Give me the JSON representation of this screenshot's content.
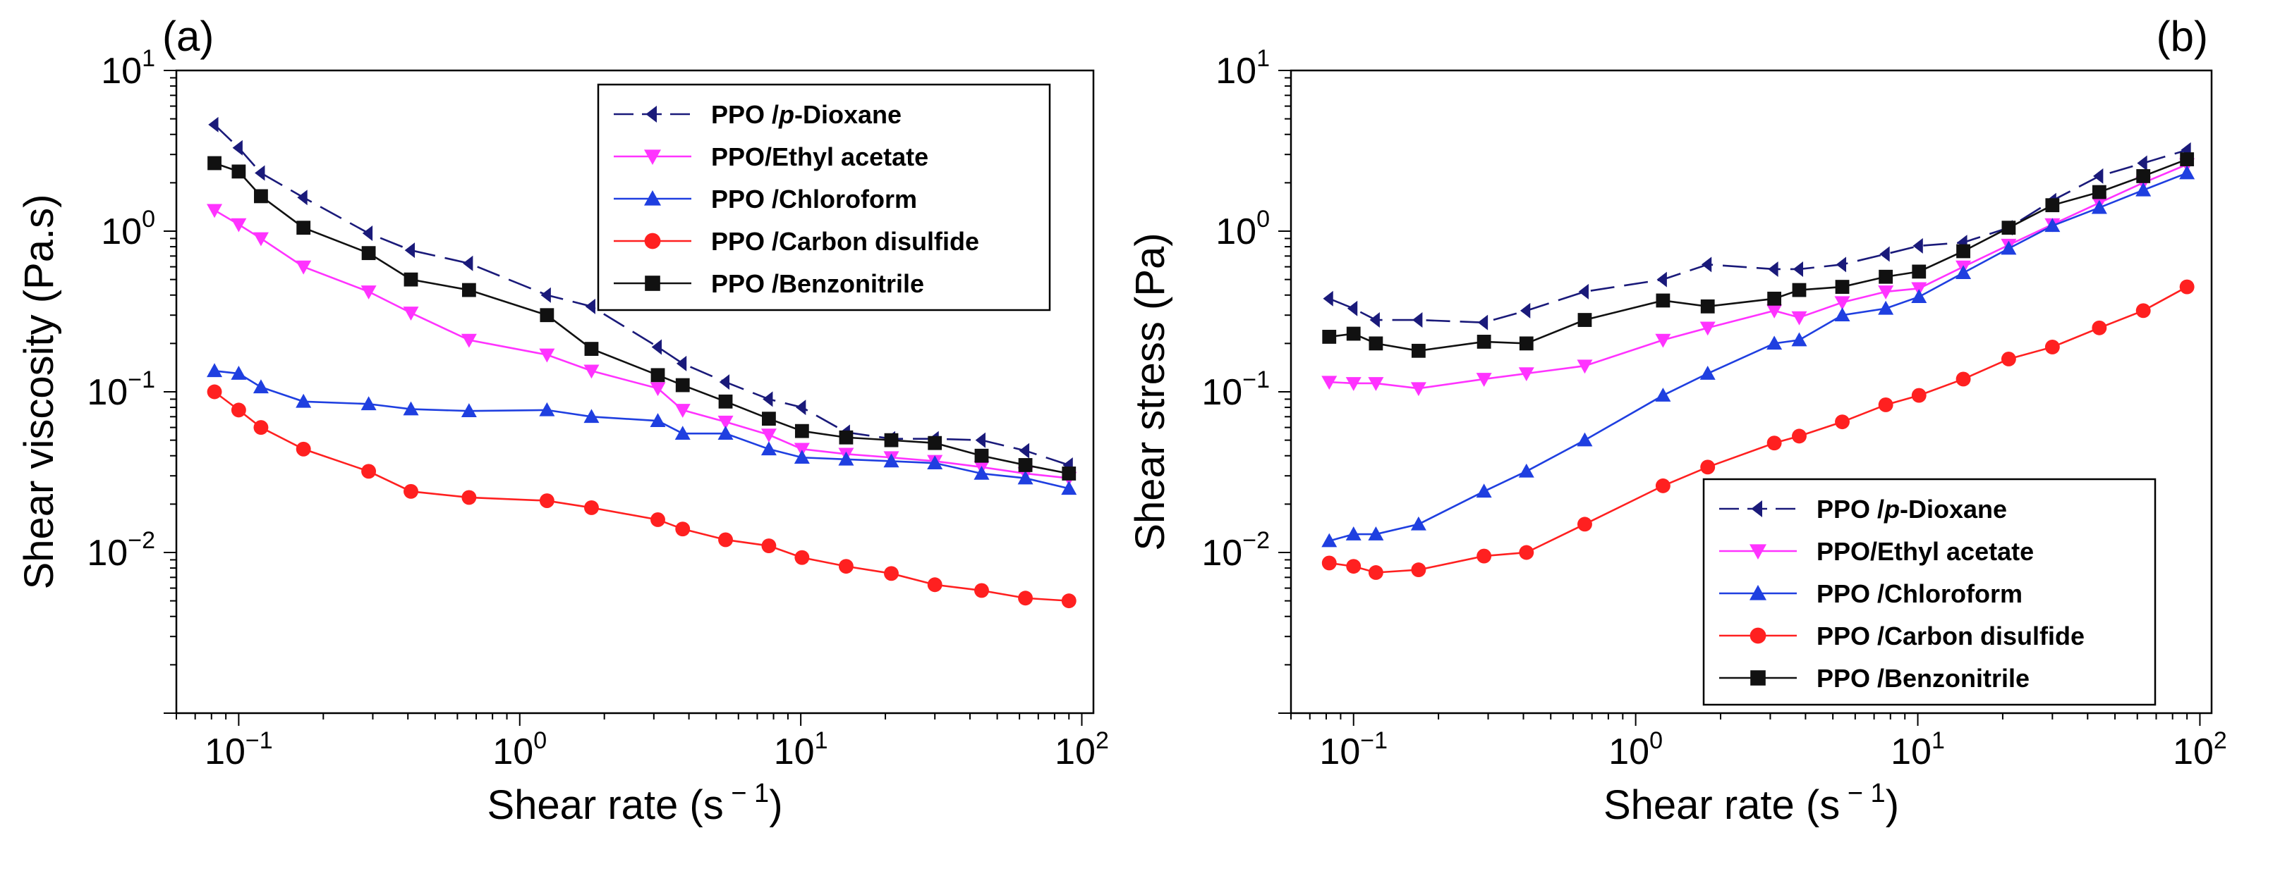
{
  "chart_data": [
    {
      "type": "line",
      "panel_label": "(a)",
      "xscale": "log",
      "yscale": "log",
      "xlabel": "Shear rate (s",
      "xlabel_sup": "− 1",
      "xlabel_end": ")",
      "ylabel": "Shear viscosity (Pa.s)",
      "xlim": [
        0.06,
        110
      ],
      "ylim": [
        0.001,
        10
      ],
      "xticks": [
        {
          "base": "10",
          "exp": "−1",
          "value": 0.1
        },
        {
          "base": "10",
          "exp": "0",
          "value": 1
        },
        {
          "base": "10",
          "exp": "1",
          "value": 10
        },
        {
          "base": "10",
          "exp": "2",
          "value": 100
        }
      ],
      "yticks": [
        {
          "base": "10",
          "exp": "−2",
          "value": 0.01
        },
        {
          "base": "10",
          "exp": "−1",
          "value": 0.1
        },
        {
          "base": "10",
          "exp": "0",
          "value": 1
        },
        {
          "base": "10",
          "exp": "1",
          "value": 10
        }
      ],
      "legend_position": "top-right",
      "series": [
        {
          "name": "PPO /p-Dioxane",
          "color": "#1a1a7a",
          "marker": "left-triangle",
          "dash": true,
          "x": [
            0.082,
            0.1,
            0.12,
            0.17,
            0.29,
            0.41,
            0.66,
            1.25,
            1.8,
            3.1,
            3.8,
            5.4,
            7.7,
            10.1,
            14.5,
            21,
            30,
            44,
            63,
            90
          ],
          "y": [
            4.6,
            3.3,
            2.3,
            1.62,
            0.97,
            0.76,
            0.63,
            0.4,
            0.34,
            0.19,
            0.15,
            0.115,
            0.09,
            0.08,
            0.056,
            0.051,
            0.051,
            0.05,
            0.043,
            0.035
          ]
        },
        {
          "name": "PPO/Ethyl acetate",
          "color": "#ff33ff",
          "marker": "down-triangle",
          "dash": false,
          "x": [
            0.082,
            0.1,
            0.12,
            0.17,
            0.29,
            0.41,
            0.66,
            1.25,
            1.8,
            3.1,
            3.8,
            5.4,
            7.7,
            10.1,
            14.5,
            21,
            30,
            44,
            63,
            90
          ],
          "y": [
            1.35,
            1.1,
            0.9,
            0.6,
            0.42,
            0.31,
            0.21,
            0.17,
            0.135,
            0.105,
            0.077,
            0.065,
            0.054,
            0.044,
            0.041,
            0.039,
            0.037,
            0.034,
            0.031,
            0.029
          ]
        },
        {
          "name": "PPO /Chloroform",
          "color": "#1f3fe0",
          "marker": "up-triangle",
          "dash": false,
          "x": [
            0.082,
            0.1,
            0.12,
            0.17,
            0.29,
            0.41,
            0.66,
            1.25,
            1.8,
            3.1,
            3.8,
            5.4,
            7.7,
            10.1,
            14.5,
            21,
            30,
            44,
            63,
            90
          ],
          "y": [
            0.135,
            0.13,
            0.107,
            0.087,
            0.084,
            0.078,
            0.076,
            0.077,
            0.07,
            0.066,
            0.055,
            0.055,
            0.044,
            0.039,
            0.038,
            0.037,
            0.036,
            0.031,
            0.029,
            0.025
          ]
        },
        {
          "name": "PPO /Carbon disulfide",
          "color": "#ff2020",
          "marker": "circle",
          "dash": false,
          "x": [
            0.082,
            0.1,
            0.12,
            0.17,
            0.29,
            0.41,
            0.66,
            1.25,
            1.8,
            3.1,
            3.8,
            5.4,
            7.7,
            10.1,
            14.5,
            21,
            30,
            44,
            63,
            90
          ],
          "y": [
            0.1,
            0.077,
            0.06,
            0.044,
            0.032,
            0.024,
            0.022,
            0.021,
            0.019,
            0.016,
            0.014,
            0.012,
            0.011,
            0.0093,
            0.0082,
            0.0074,
            0.0063,
            0.0058,
            0.0052,
            0.005
          ]
        },
        {
          "name": "PPO /Benzonitrile",
          "color": "#111111",
          "marker": "square",
          "dash": false,
          "x": [
            0.082,
            0.1,
            0.12,
            0.17,
            0.29,
            0.41,
            0.66,
            1.25,
            1.8,
            3.1,
            3.8,
            5.4,
            7.7,
            10.1,
            14.5,
            21,
            30,
            44,
            63,
            90
          ],
          "y": [
            2.65,
            2.35,
            1.65,
            1.05,
            0.73,
            0.5,
            0.43,
            0.3,
            0.185,
            0.127,
            0.11,
            0.087,
            0.068,
            0.057,
            0.052,
            0.05,
            0.048,
            0.04,
            0.035,
            0.031
          ]
        }
      ]
    },
    {
      "type": "line",
      "panel_label": "(b)",
      "xscale": "log",
      "yscale": "log",
      "xlabel": "Shear rate (s",
      "xlabel_sup": "− 1",
      "xlabel_end": ")",
      "ylabel": "Shear stress (Pa)",
      "xlim": [
        0.06,
        110
      ],
      "ylim": [
        0.001,
        10
      ],
      "xticks": [
        {
          "base": "10",
          "exp": "−1",
          "value": 0.1
        },
        {
          "base": "10",
          "exp": "0",
          "value": 1
        },
        {
          "base": "10",
          "exp": "1",
          "value": 10
        },
        {
          "base": "10",
          "exp": "2",
          "value": 100
        }
      ],
      "yticks": [
        {
          "base": "10",
          "exp": "−2",
          "value": 0.01
        },
        {
          "base": "10",
          "exp": "−1",
          "value": 0.1
        },
        {
          "base": "10",
          "exp": "0",
          "value": 1
        },
        {
          "base": "10",
          "exp": "1",
          "value": 10
        }
      ],
      "legend_position": "bottom-right",
      "series": [
        {
          "name": "PPO /p-Dioxane",
          "color": "#1a1a7a",
          "marker": "left-triangle",
          "dash": true,
          "x": [
            0.082,
            0.1,
            0.12,
            0.17,
            0.29,
            0.41,
            0.66,
            1.25,
            1.8,
            3.1,
            3.8,
            5.4,
            7.7,
            10.1,
            14.5,
            21,
            30,
            44,
            63,
            90
          ],
          "y": [
            0.38,
            0.33,
            0.28,
            0.28,
            0.27,
            0.32,
            0.42,
            0.5,
            0.62,
            0.58,
            0.58,
            0.62,
            0.72,
            0.81,
            0.85,
            1.05,
            1.55,
            2.2,
            2.65,
            3.2
          ]
        },
        {
          "name": "PPO/Ethyl acetate",
          "color": "#ff33ff",
          "marker": "down-triangle",
          "dash": false,
          "x": [
            0.082,
            0.1,
            0.12,
            0.17,
            0.29,
            0.41,
            0.66,
            1.25,
            1.8,
            3.1,
            3.8,
            5.4,
            7.7,
            10.1,
            14.5,
            21,
            30,
            44,
            63,
            90
          ],
          "y": [
            0.115,
            0.113,
            0.113,
            0.105,
            0.12,
            0.13,
            0.145,
            0.21,
            0.25,
            0.32,
            0.29,
            0.36,
            0.42,
            0.44,
            0.6,
            0.82,
            1.1,
            1.5,
            2.0,
            2.6
          ]
        },
        {
          "name": "PPO /Chloroform",
          "color": "#1f3fe0",
          "marker": "up-triangle",
          "dash": false,
          "x": [
            0.082,
            0.1,
            0.12,
            0.17,
            0.29,
            0.41,
            0.66,
            1.25,
            1.8,
            3.1,
            3.8,
            5.4,
            7.7,
            10.1,
            14.5,
            21,
            30,
            44,
            63,
            90
          ],
          "y": [
            0.0118,
            0.013,
            0.013,
            0.015,
            0.024,
            0.032,
            0.05,
            0.095,
            0.13,
            0.2,
            0.21,
            0.3,
            0.33,
            0.39,
            0.55,
            0.78,
            1.08,
            1.4,
            1.8,
            2.3
          ]
        },
        {
          "name": "PPO /Carbon disulfide",
          "color": "#ff2020",
          "marker": "circle",
          "dash": false,
          "x": [
            0.082,
            0.1,
            0.12,
            0.17,
            0.29,
            0.41,
            0.66,
            1.25,
            1.8,
            3.1,
            3.8,
            5.4,
            7.7,
            10.1,
            14.5,
            21,
            30,
            44,
            63,
            90
          ],
          "y": [
            0.0086,
            0.0082,
            0.0075,
            0.0078,
            0.0095,
            0.01,
            0.015,
            0.026,
            0.034,
            0.048,
            0.053,
            0.065,
            0.083,
            0.095,
            0.12,
            0.16,
            0.19,
            0.25,
            0.32,
            0.45
          ]
        },
        {
          "name": "PPO /Benzonitrile",
          "color": "#111111",
          "marker": "square",
          "dash": false,
          "x": [
            0.082,
            0.1,
            0.12,
            0.17,
            0.29,
            0.41,
            0.66,
            1.25,
            1.8,
            3.1,
            3.8,
            5.4,
            7.7,
            10.1,
            14.5,
            21,
            30,
            44,
            63,
            90
          ],
          "y": [
            0.22,
            0.23,
            0.2,
            0.18,
            0.205,
            0.2,
            0.28,
            0.37,
            0.34,
            0.38,
            0.43,
            0.45,
            0.52,
            0.56,
            0.75,
            1.05,
            1.45,
            1.75,
            2.2,
            2.8
          ]
        }
      ]
    }
  ]
}
